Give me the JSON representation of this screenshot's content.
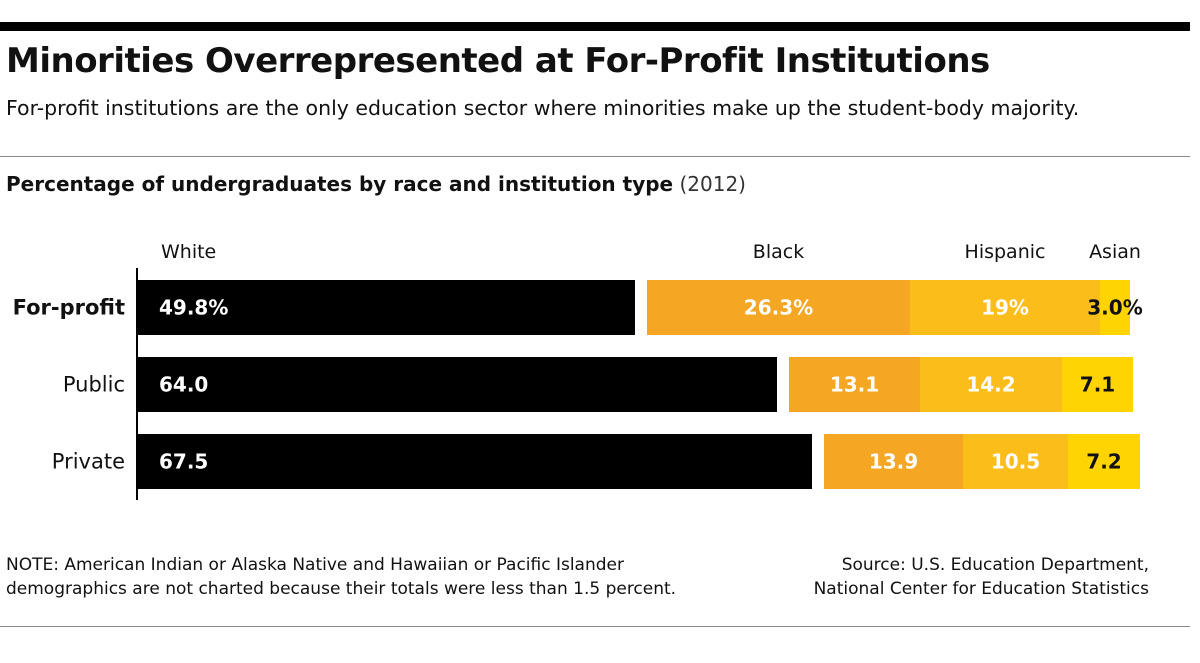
{
  "header": {
    "title": "Minorities Overrepresented at For-Profit Institutions",
    "subtitle": "For-profit institutions are the only education sector where minorities make up the student-body majority."
  },
  "chart_heading": {
    "main": "Percentage of undergraduates by race and institution type",
    "year": "(2012)"
  },
  "chart_data": {
    "type": "bar",
    "orientation": "horizontal",
    "stacked": true,
    "categories": [
      "For-profit",
      "Public",
      "Private"
    ],
    "series": [
      {
        "name": "White",
        "values": [
          49.8,
          64.0,
          67.5
        ],
        "labels": [
          "49.8%",
          "64.0",
          "67.5"
        ],
        "color": "#000000"
      },
      {
        "name": "Black",
        "values": [
          26.3,
          13.1,
          13.9
        ],
        "labels": [
          "26.3%",
          "13.1",
          "13.9"
        ],
        "color": "#F5A623"
      },
      {
        "name": "Hispanic",
        "values": [
          19.0,
          14.2,
          10.5
        ],
        "labels": [
          "19%",
          "14.2",
          "10.5"
        ],
        "color": "#FBBD1A"
      },
      {
        "name": "Asian",
        "values": [
          3.0,
          7.1,
          7.2
        ],
        "labels": [
          "3.0%",
          "7.1",
          "7.2"
        ],
        "color": "#FFD400"
      }
    ]
  },
  "footer": {
    "note_line1": "NOTE: American Indian or Alaska Native and Hawaiian or Pacific Islander",
    "note_line2": "demographics are not charted because their totals were less than 1.5 percent.",
    "source_line1": "Source: U.S. Education Department,",
    "source_line2": "National Center for Education Statistics"
  }
}
